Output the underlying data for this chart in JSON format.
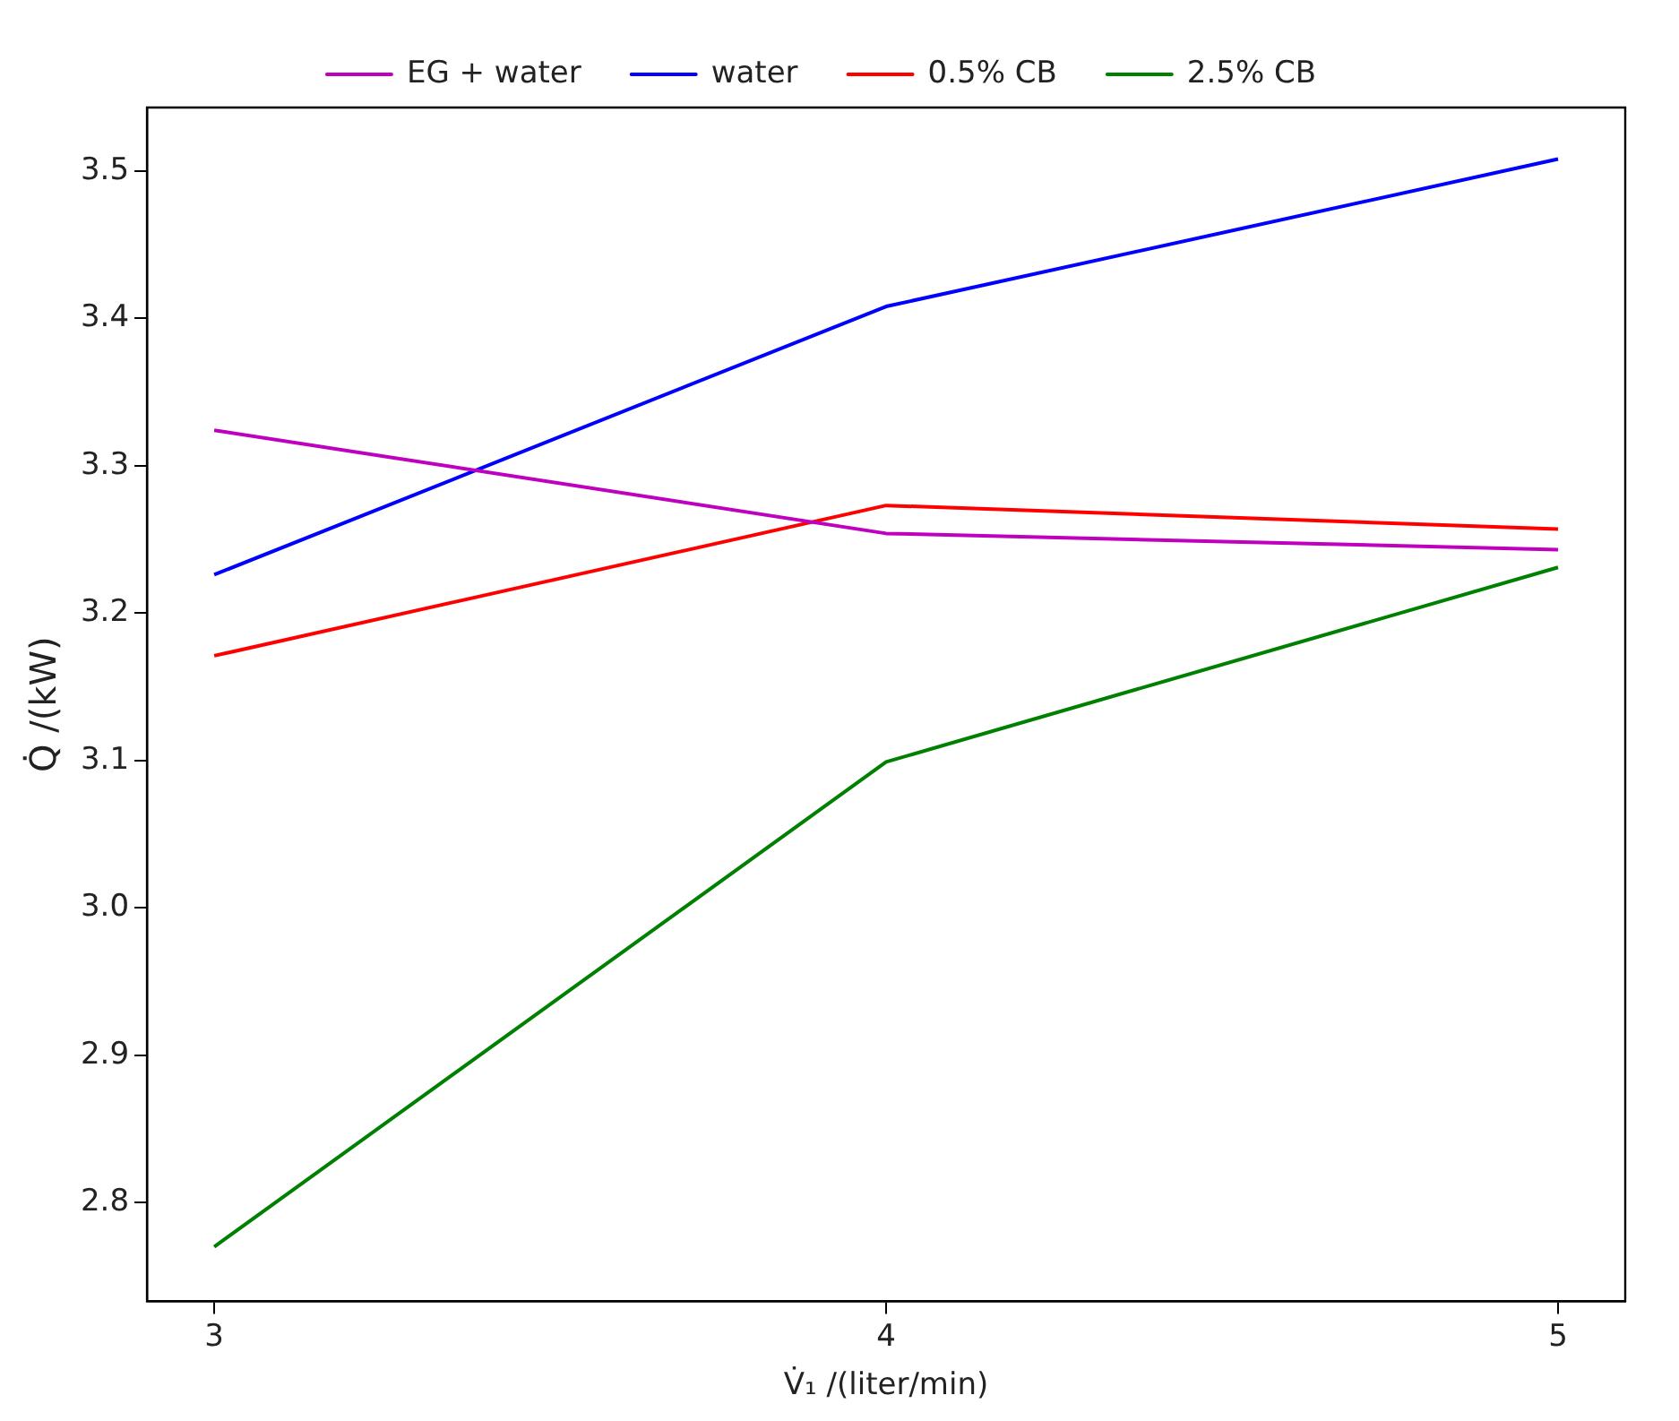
{
  "chart_data": {
    "type": "line",
    "xlabel": "V̇₁ /(liter/min)",
    "ylabel": "Q̇ /(kW)",
    "x": [
      3,
      4,
      5
    ],
    "xlim": [
      2.9,
      5.1
    ],
    "xticks": [
      3,
      4,
      5
    ],
    "ylim": [
      2.733,
      3.543
    ],
    "yticks": [
      2.8,
      2.9,
      {
        "value": 3,
        "label": "3.0"
      },
      3.1,
      3.2,
      3.3,
      3.4,
      3.5
    ],
    "series": [
      {
        "name": "EG + water",
        "color": "#bf00bf",
        "values": [
          3.324,
          3.254,
          3.243
        ]
      },
      {
        "name": "water",
        "color": "#0000ff",
        "values": [
          3.226,
          3.408,
          3.508
        ]
      },
      {
        "name": "0.5% CB",
        "color": "#ff0000",
        "values": [
          3.171,
          3.273,
          3.257
        ]
      },
      {
        "name": "2.5% CB",
        "color": "#008000",
        "values": [
          2.77,
          3.099,
          3.231
        ]
      }
    ],
    "grid": false,
    "legend": "top",
    "marker": "none",
    "line_style": "solid"
  }
}
